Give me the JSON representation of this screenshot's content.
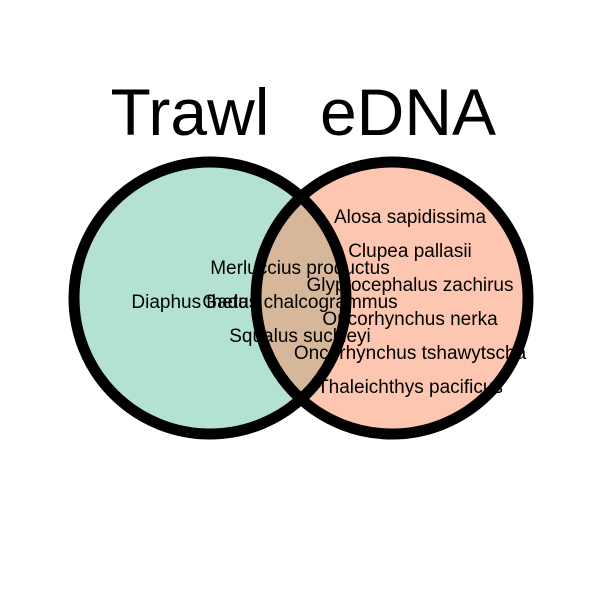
{
  "sets": [
    {
      "key": "trawl",
      "title": "Trawl",
      "fill": "#b3e2d3"
    },
    {
      "key": "edna",
      "title": "eDNA",
      "fill": "#fdc6b1"
    }
  ],
  "overlap_fill": "#d6b79a",
  "outline_color": "#000000",
  "species": {
    "trawl_only": [
      "Diaphus theta"
    ],
    "both": [
      "Merluccius productus",
      "Gadus chalcogrammus",
      "Squalus suckleyi"
    ],
    "edna_only": [
      "Alosa sapidissima",
      "Clupea pallasii",
      "Glyptocephalus zachirus",
      "Oncorhynchus nerka",
      "Oncorhynchus tshawytscha",
      "Thaleichthys pacificus"
    ]
  }
}
